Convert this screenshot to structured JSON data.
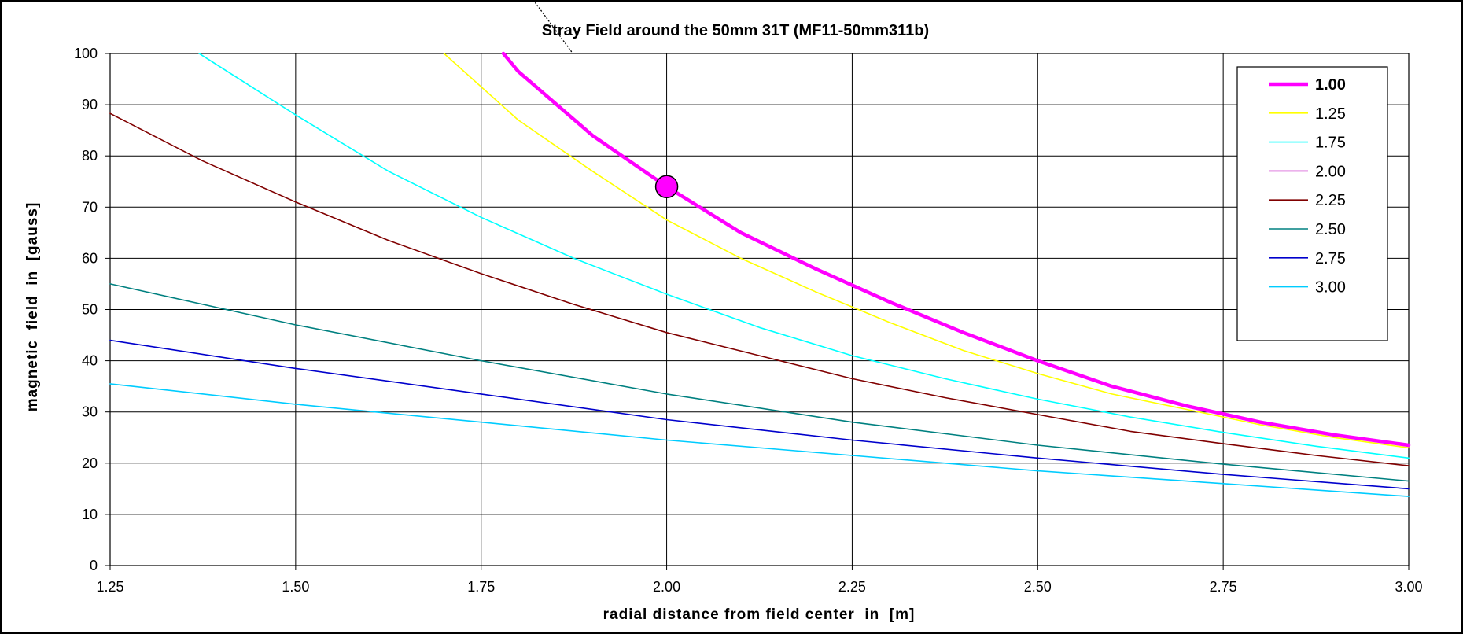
{
  "chart_data": {
    "type": "line",
    "title": "Stray Field around the 50mm 31T (MF11-50mm311b)",
    "xlabel": "radial distance from field center  in  [m]",
    "ylabel": "magnetic  field  in  [gauss]",
    "xlim": [
      1.25,
      3.0
    ],
    "ylim": [
      0,
      100
    ],
    "x_ticks": [
      "1.25",
      "1.50",
      "1.75",
      "2.00",
      "2.25",
      "2.50",
      "2.75",
      "3.00"
    ],
    "y_ticks": [
      "0",
      "10",
      "20",
      "30",
      "40",
      "50",
      "60",
      "70",
      "80",
      "90",
      "100"
    ],
    "grid": true,
    "legend_position": "top-right",
    "series": [
      {
        "name": "1.00",
        "color": "#FF00FF",
        "bold": true,
        "x": [
          1.78,
          1.8,
          1.9,
          2.0,
          2.1,
          2.2,
          2.3,
          2.4,
          2.5,
          2.6,
          2.7,
          2.8,
          2.9,
          3.0
        ],
        "y": [
          100,
          96.5,
          84,
          74,
          65,
          58,
          51.5,
          45.5,
          40,
          35,
          31.2,
          28,
          25.5,
          23.5
        ]
      },
      {
        "name": "1.25",
        "color": "#FFFF00",
        "x": [
          1.7,
          1.8,
          1.9,
          2.0,
          2.1,
          2.2,
          2.3,
          2.4,
          2.5,
          2.6,
          2.7,
          2.8,
          2.9,
          3.0
        ],
        "y": [
          100,
          87,
          77,
          67.5,
          60,
          53.5,
          47.5,
          42,
          37.5,
          33.5,
          30.5,
          27.5,
          25,
          23
        ]
      },
      {
        "name": "1.75",
        "color": "#00FFFF",
        "x": [
          1.37,
          1.5,
          1.625,
          1.75,
          1.875,
          2.0,
          2.125,
          2.25,
          2.375,
          2.5,
          2.625,
          2.75,
          2.875,
          3.0
        ],
        "y": [
          100,
          88,
          77,
          68,
          60,
          53,
          46.5,
          41,
          36.5,
          32.5,
          29,
          26,
          23.3,
          21
        ]
      },
      {
        "name": "2.00",
        "color": "#CC33CC",
        "x": [],
        "y": []
      },
      {
        "name": "2.25",
        "color": "#800000",
        "x": [
          1.25,
          1.375,
          1.5,
          1.625,
          1.75,
          1.875,
          2.0,
          2.125,
          2.25,
          2.375,
          2.5,
          2.625,
          2.75,
          2.875,
          3.0
        ],
        "y": [
          88.3,
          79,
          71,
          63.5,
          57,
          51,
          45.5,
          41,
          36.5,
          32.8,
          29.5,
          26.2,
          23.8,
          21.5,
          19.5
        ]
      },
      {
        "name": "2.50",
        "color": "#008080",
        "x": [
          1.25,
          1.5,
          1.75,
          2.0,
          2.25,
          2.5,
          2.75,
          3.0
        ],
        "y": [
          55,
          47,
          40,
          33.5,
          28,
          23.5,
          19.8,
          16.5
        ]
      },
      {
        "name": "2.75",
        "color": "#0000CC",
        "x": [
          1.25,
          1.5,
          1.75,
          2.0,
          2.25,
          2.5,
          2.75,
          3.0
        ],
        "y": [
          44,
          38.5,
          33.5,
          28.5,
          24.5,
          21,
          17.8,
          15
        ]
      },
      {
        "name": "3.00",
        "color": "#00CCFF",
        "x": [
          1.25,
          1.5,
          1.75,
          2.0,
          2.25,
          2.5,
          2.75,
          3.0
        ],
        "y": [
          35.5,
          31.5,
          28,
          24.5,
          21.5,
          18.5,
          16,
          13.5
        ]
      }
    ],
    "marker": {
      "x": 2.0,
      "y": 74,
      "color": "#FF00FF"
    }
  }
}
